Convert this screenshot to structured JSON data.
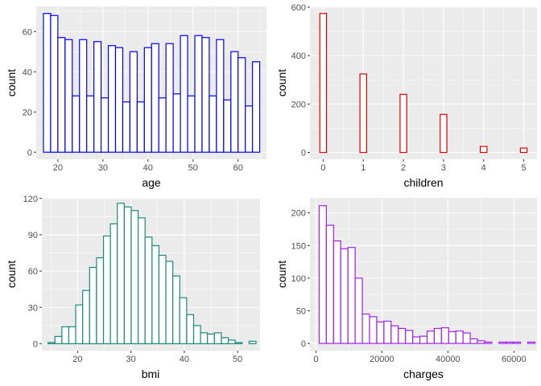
{
  "chart_data": [
    {
      "type": "bar",
      "xlabel": "age",
      "ylabel": "count",
      "color": "#0000ff",
      "bin_width": 1.6,
      "xlim": [
        15.2,
        66.3
      ],
      "ylim": [
        -3.5,
        72.5
      ],
      "x_ticks": [
        20,
        30,
        40,
        50,
        60
      ],
      "x_tick_labels": [
        "20",
        "30",
        "40",
        "50",
        "60"
      ],
      "y_ticks": [
        0,
        20,
        40,
        60
      ],
      "y_tick_labels": [
        "0",
        "20",
        "40",
        "60"
      ],
      "bins": [
        17.6,
        19.2,
        20.8,
        22.4,
        24.0,
        25.6,
        27.2,
        28.8,
        30.4,
        32.0,
        33.6,
        35.2,
        36.8,
        38.4,
        40.0,
        41.6,
        43.2,
        44.8,
        46.4,
        48.0,
        49.6,
        51.2,
        52.8,
        54.4,
        56.0,
        57.6,
        59.2,
        60.8,
        62.4,
        64.0
      ],
      "values": [
        69,
        68,
        57,
        56,
        28,
        56,
        28,
        55,
        27,
        53,
        52,
        25,
        50,
        25,
        52,
        54,
        27,
        54,
        29,
        58,
        28,
        58,
        57,
        28,
        56,
        26,
        50,
        47,
        23,
        45
      ]
    },
    {
      "type": "bar",
      "xlabel": "children",
      "ylabel": "count",
      "color": "#dd0000",
      "bin_width": 0.1667,
      "xlim": [
        -0.33,
        5.33
      ],
      "ylim": [
        -28,
        603
      ],
      "x_ticks": [
        0,
        1,
        2,
        3,
        4,
        5
      ],
      "x_tick_labels": [
        "0",
        "1",
        "2",
        "3",
        "4",
        "5"
      ],
      "y_ticks": [
        0,
        200,
        400,
        600
      ],
      "y_tick_labels": [
        "0",
        "200",
        "400",
        "600"
      ],
      "bins": [
        0,
        0.1667,
        0.3333,
        0.5,
        0.6667,
        0.8333,
        1,
        1.1667,
        1.3333,
        1.5,
        1.6667,
        1.8333,
        2,
        2.1667,
        2.3333,
        2.5,
        2.6667,
        2.8333,
        3,
        3.1667,
        3.3333,
        3.5,
        3.6667,
        3.8333,
        4,
        4.1667,
        4.3333,
        4.5,
        4.6667,
        4.8333,
        5
      ],
      "values": [
        574,
        0,
        0,
        0,
        0,
        0,
        324,
        0,
        0,
        0,
        0,
        0,
        240,
        0,
        0,
        0,
        0,
        0,
        157,
        0,
        0,
        0,
        0,
        0,
        25,
        0,
        0,
        0,
        0,
        0,
        18
      ]
    },
    {
      "type": "bar",
      "xlabel": "bmi",
      "ylabel": "count",
      "color": "#1a8a80",
      "bin_width": 1.3,
      "xlim": [
        13.3,
        54.2
      ],
      "ylim": [
        -5.7,
        120.5
      ],
      "x_ticks": [
        20,
        30,
        40,
        50
      ],
      "x_tick_labels": [
        "20",
        "30",
        "40",
        "50"
      ],
      "y_ticks": [
        0,
        30,
        60,
        90,
        120
      ],
      "y_tick_labels": [
        "0",
        "30",
        "60",
        "90",
        "120"
      ],
      "bins": [
        15.1,
        16.4,
        17.7,
        19.0,
        20.3,
        21.6,
        22.9,
        24.2,
        25.5,
        26.8,
        28.1,
        29.4,
        30.7,
        32.0,
        33.3,
        34.6,
        35.9,
        37.2,
        38.5,
        39.8,
        41.1,
        42.4,
        43.7,
        45.0,
        46.3,
        47.6,
        48.9,
        50.2,
        51.5,
        52.8
      ],
      "values": [
        1,
        6,
        14,
        14,
        32,
        44,
        63,
        71,
        89,
        99,
        116,
        113,
        110,
        104,
        88,
        81,
        73,
        68,
        56,
        38,
        24,
        15,
        9,
        8,
        9,
        5,
        3,
        1,
        0,
        2
      ]
    },
    {
      "type": "bar",
      "xlabel": "charges",
      "ylabel": "count",
      "color": "#a020f0",
      "bin_width": 2180,
      "xlim": [
        -1800,
        67000
      ],
      "ylim": [
        -11,
        223
      ],
      "x_ticks": [
        0,
        20000,
        40000,
        60000
      ],
      "x_tick_labels": [
        "0",
        "20000",
        "40000",
        "60000"
      ],
      "y_ticks": [
        0,
        50,
        100,
        150,
        200
      ],
      "y_tick_labels": [
        "0",
        "50",
        "100",
        "150",
        "200"
      ],
      "bins": [
        2090,
        4270,
        6450,
        8630,
        10810,
        12990,
        15170,
        17350,
        19530,
        21710,
        23890,
        26070,
        28250,
        30430,
        32610,
        34790,
        36970,
        39150,
        41330,
        43510,
        45690,
        47870,
        50050,
        52230,
        54410,
        56590,
        58770,
        60950,
        63130,
        65310
      ],
      "values": [
        211,
        181,
        157,
        145,
        147,
        100,
        45,
        41,
        33,
        34,
        27,
        23,
        20,
        10,
        11,
        19,
        23,
        24,
        18,
        19,
        16,
        7,
        4,
        2,
        0,
        2,
        2,
        2,
        0,
        2
      ]
    }
  ]
}
